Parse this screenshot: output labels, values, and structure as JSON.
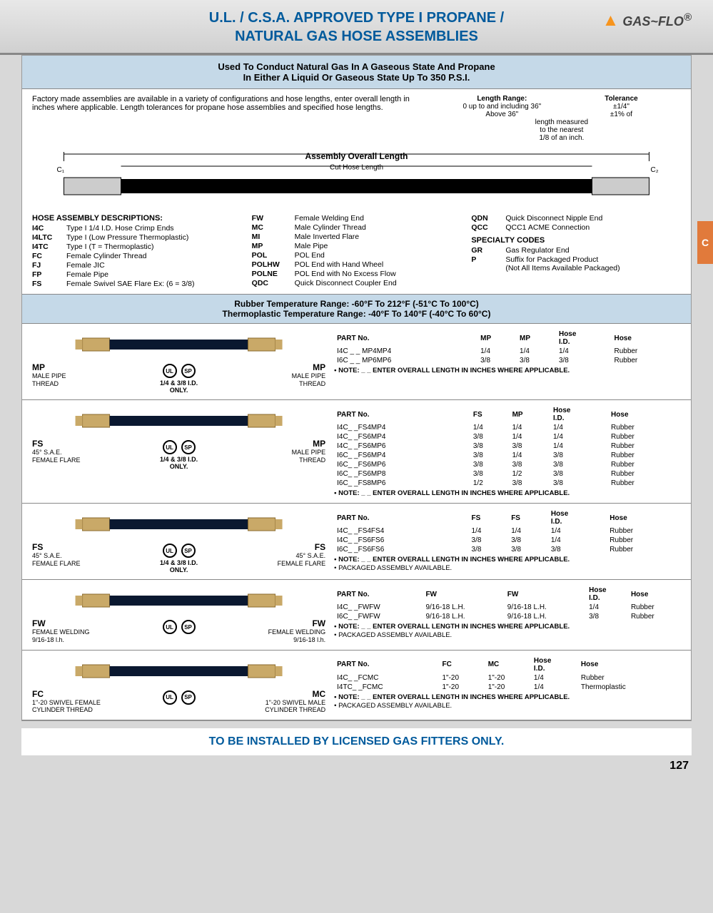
{
  "header": {
    "title_l1": "U.L. / C.S.A. APPROVED TYPE I PROPANE /",
    "title_l2": "NATURAL GAS HOSE ASSEMBLIES",
    "logo": "GAS~FLO",
    "reg": "®"
  },
  "subtitle": {
    "l1": "Used To Conduct Natural Gas In A Gaseous State And Propane",
    "l2": "In Either A Liquid Or Gaseous State Up To 350 P.S.I."
  },
  "intro": {
    "text": "Factory made assemblies are available in a variety of configurations and hose lengths, enter overall length in inches where applicable. Length tolerances for propane hose assemblies and specified hose lengths."
  },
  "tol": {
    "h1": "Length Range:",
    "h2": "Tolerance",
    "r1a": "0 up to and including 36\"",
    "r1b": "±1/4\"",
    "r2a": "Above 36\"",
    "r2b": "±1% of",
    "r3": "length measured",
    "r4": "to the nearest",
    "r5": "1/8 of an inch."
  },
  "diag": {
    "t1": "Assembly Overall Length",
    "t2": "Cut Hose Length"
  },
  "desc": {
    "h": "HOSE ASSEMBLY DESCRIPTIONS:",
    "c1": [
      [
        "I4C",
        "Type I 1/4 I.D. Hose Crimp Ends"
      ],
      [
        "I4LTC",
        "Type I (Low Pressure Thermoplastic)"
      ],
      [
        "I4TC",
        "Type I (T = Thermoplastic)"
      ],
      [
        "FC",
        "Female Cylinder Thread"
      ],
      [
        "FJ",
        "Female JIC"
      ],
      [
        "FP",
        "Female Pipe"
      ],
      [
        "FS",
        "Female Swivel SAE Flare Ex: (6 = 3/8)"
      ]
    ],
    "c2": [
      [
        "FW",
        "Female Welding End"
      ],
      [
        "MC",
        "Male Cylinder Thread"
      ],
      [
        "MI",
        "Male Inverted Flare"
      ],
      [
        "MP",
        "Male Pipe"
      ],
      [
        "POL",
        "POL End"
      ],
      [
        "POLHW",
        "POL End with Hand Wheel"
      ],
      [
        "POLNE",
        "POL End with No Excess Flow"
      ],
      [
        "QDC",
        "Quick Disconnect Coupler End"
      ]
    ],
    "c3": [
      [
        "QDN",
        "Quick Disconnect Nipple End"
      ],
      [
        "QCC",
        "QCC1 ACME Connection"
      ]
    ],
    "sh": "SPECIALTY CODES",
    "c3b": [
      [
        "GR",
        "Gas Regulator End"
      ],
      [
        "P",
        "Suffix for Packaged Product"
      ]
    ],
    "c3n": "(Not All Items Available Packaged)"
  },
  "temp": {
    "l1": "Rubber Temperature Range: -60°F To 212°F (-51°C To 100°C)",
    "l2": "Thermoplastic Temperature Range: -40°F To 140°F (-40°C To 60°C)"
  },
  "assemblies": [
    {
      "left": {
        "c": "MP",
        "d": "MALE PIPE\nTHREAD"
      },
      "right": {
        "c": "MP",
        "d": "MALE PIPE\nTHREAD"
      },
      "size": "1/4 & 3/8 I.D.\nONLY.",
      "certs": [
        "UL",
        "SP"
      ],
      "headers": [
        "PART No.",
        "MP",
        "MP",
        "Hose\nI.D.",
        "Hose"
      ],
      "rows": [
        [
          "I4C _ _ MP4MP4",
          "1/4",
          "1/4",
          "1/4",
          "Rubber"
        ],
        [
          "I6C _ _ MP6MP6",
          "3/8",
          "3/8",
          "3/8",
          "Rubber"
        ]
      ],
      "notes": [
        "• NOTE:  _ _ ENTER OVERALL LENGTH IN INCHES WHERE APPLICABLE."
      ]
    },
    {
      "left": {
        "c": "FS",
        "d": "45° S.A.E.\nFEMALE FLARE"
      },
      "right": {
        "c": "MP",
        "d": "MALE PIPE\nTHREAD"
      },
      "size": "1/4 & 3/8 I.D.\nONLY.",
      "certs": [
        "UL",
        "SP"
      ],
      "headers": [
        "PART No.",
        "FS",
        "MP",
        "Hose\nI.D.",
        "Hose"
      ],
      "rows": [
        [
          "I4C_ _FS4MP4",
          "1/4",
          "1/4",
          "1/4",
          "Rubber"
        ],
        [
          "I4C_ _FS6MP4",
          "3/8",
          "1/4",
          "1/4",
          "Rubber"
        ],
        [
          "I4C_ _FS6MP6",
          "3/8",
          "3/8",
          "1/4",
          "Rubber"
        ],
        [
          "I6C_ _FS6MP4",
          "3/8",
          "1/4",
          "3/8",
          "Rubber"
        ],
        [
          "I6C_ _FS6MP6",
          "3/8",
          "3/8",
          "3/8",
          "Rubber"
        ],
        [
          "I6C_ _FS6MP8",
          "3/8",
          "1/2",
          "3/8",
          "Rubber"
        ],
        [
          "I6C_ _FS8MP6",
          "1/2",
          "3/8",
          "3/8",
          "Rubber"
        ]
      ],
      "notes": [
        "• NOTE:  _ _ ENTER OVERALL LENGTH IN INCHES WHERE APPLICABLE."
      ]
    },
    {
      "left": {
        "c": "FS",
        "d": "45° S.A.E.\nFEMALE FLARE"
      },
      "right": {
        "c": "FS",
        "d": "45° S.A.E.\nFEMALE FLARE"
      },
      "size": "1/4 & 3/8 I.D.\nONLY.",
      "certs": [
        "UL",
        "SP"
      ],
      "headers": [
        "PART No.",
        "FS",
        "FS",
        "Hose\nI.D.",
        "Hose"
      ],
      "rows": [
        [
          "I4C_ _FS4FS4",
          "1/4",
          "1/4",
          "1/4",
          "Rubber"
        ],
        [
          "I4C_ _FS6FS6",
          "3/8",
          "3/8",
          "1/4",
          "Rubber"
        ],
        [
          "I6C_ _FS6FS6",
          "3/8",
          "3/8",
          "3/8",
          "Rubber"
        ]
      ],
      "notes": [
        "• NOTE:  _ _ ENTER OVERALL LENGTH IN INCHES WHERE APPLICABLE.",
        "• PACKAGED ASSEMBLY AVAILABLE."
      ]
    },
    {
      "left": {
        "c": "FW",
        "d": "FEMALE WELDING\n9/16-18 l.h."
      },
      "right": {
        "c": "FW",
        "d": "FEMALE WELDING\n9/16-18 l.h."
      },
      "size": "",
      "certs": [
        "UL",
        "SP"
      ],
      "headers": [
        "PART No.",
        "FW",
        "FW",
        "Hose\nI.D.",
        "Hose"
      ],
      "rows": [
        [
          "I4C_ _FWFW",
          "9/16-18 L.H.",
          "9/16-18 L.H.",
          "1/4",
          "Rubber"
        ],
        [
          "I6C_ _FWFW",
          "9/16-18 L.H.",
          "9/16-18 L.H.",
          "3/8",
          "Rubber"
        ]
      ],
      "notes": [
        "• NOTE:  _ _ ENTER OVERALL LENGTH IN INCHES WHERE APPLICABLE.",
        "• PACKAGED ASSEMBLY AVAILABLE."
      ]
    },
    {
      "left": {
        "c": "FC",
        "d": "1\"-20 SWIVEL FEMALE\nCYLINDER THREAD"
      },
      "right": {
        "c": "MC",
        "d": "1\"-20 SWIVEL MALE\nCYLINDER THREAD"
      },
      "size": "",
      "certs": [
        "UL",
        "SP"
      ],
      "headers": [
        "PART No.",
        "FC",
        "MC",
        "Hose\nI.D.",
        "Hose"
      ],
      "rows": [
        [
          "I4C_ _FCMC",
          "1\"-20",
          "1\"-20",
          "1/4",
          "Rubber"
        ],
        [
          "I4TC_ _FCMC",
          "1\"-20",
          "1\"-20",
          "1/4",
          "Thermoplastic"
        ]
      ],
      "notes": [
        "• NOTE:  _ _ ENTER OVERALL LENGTH IN INCHES WHERE APPLICABLE.",
        "• PACKAGED ASSEMBLY AVAILABLE."
      ]
    }
  ],
  "footer": "TO BE INSTALLED  BY LICENSED GAS FITTERS ONLY.",
  "pagenum": "127",
  "sidetab": "C"
}
